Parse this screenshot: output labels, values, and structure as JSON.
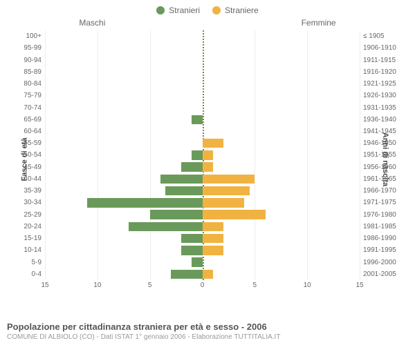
{
  "legend": {
    "male": {
      "label": "Stranieri",
      "color": "#6a9a5b"
    },
    "female": {
      "label": "Straniere",
      "color": "#f0b342"
    }
  },
  "chart": {
    "type": "bar-pyramid",
    "header_male": "Maschi",
    "header_female": "Femmine",
    "left_axis_title": "Fasce di età",
    "right_axis_title": "Anni di nascita",
    "xmax": 15,
    "xtick_step": 5,
    "xticks_left": [
      15,
      10,
      5,
      0
    ],
    "xticks_right": [
      0,
      5,
      10,
      15
    ],
    "grid_color": "#eeeeee",
    "centerline_color": "#888040",
    "background_color": "#ffffff",
    "age_bands": [
      {
        "label": "100+",
        "birth": "≤ 1905",
        "m": 0,
        "f": 0
      },
      {
        "label": "95-99",
        "birth": "1906-1910",
        "m": 0,
        "f": 0
      },
      {
        "label": "90-94",
        "birth": "1911-1915",
        "m": 0,
        "f": 0
      },
      {
        "label": "85-89",
        "birth": "1916-1920",
        "m": 0,
        "f": 0
      },
      {
        "label": "80-84",
        "birth": "1921-1925",
        "m": 0,
        "f": 0
      },
      {
        "label": "75-79",
        "birth": "1926-1930",
        "m": 0,
        "f": 0
      },
      {
        "label": "70-74",
        "birth": "1931-1935",
        "m": 0,
        "f": 0
      },
      {
        "label": "65-69",
        "birth": "1936-1940",
        "m": 1,
        "f": 0
      },
      {
        "label": "60-64",
        "birth": "1941-1945",
        "m": 0,
        "f": 0
      },
      {
        "label": "55-59",
        "birth": "1946-1950",
        "m": 0,
        "f": 2
      },
      {
        "label": "50-54",
        "birth": "1951-1955",
        "m": 1,
        "f": 1
      },
      {
        "label": "45-49",
        "birth": "1956-1960",
        "m": 2,
        "f": 1
      },
      {
        "label": "40-44",
        "birth": "1961-1965",
        "m": 4,
        "f": 5
      },
      {
        "label": "35-39",
        "birth": "1966-1970",
        "m": 3.5,
        "f": 4.5
      },
      {
        "label": "30-34",
        "birth": "1971-1975",
        "m": 11,
        "f": 4
      },
      {
        "label": "25-29",
        "birth": "1976-1980",
        "m": 5,
        "f": 6
      },
      {
        "label": "20-24",
        "birth": "1981-1985",
        "m": 7,
        "f": 2
      },
      {
        "label": "15-19",
        "birth": "1986-1990",
        "m": 2,
        "f": 2
      },
      {
        "label": "10-14",
        "birth": "1991-1995",
        "m": 2,
        "f": 2
      },
      {
        "label": "5-9",
        "birth": "1996-2000",
        "m": 1,
        "f": 0
      },
      {
        "label": "0-4",
        "birth": "2001-2005",
        "m": 3,
        "f": 1
      }
    ]
  },
  "footer": {
    "title": "Popolazione per cittadinanza straniera per età e sesso - 2006",
    "subtitle": "COMUNE DI ALBIOLO (CO) - Dati ISTAT 1° gennaio 2006 - Elaborazione TUTTITALIA.IT"
  }
}
